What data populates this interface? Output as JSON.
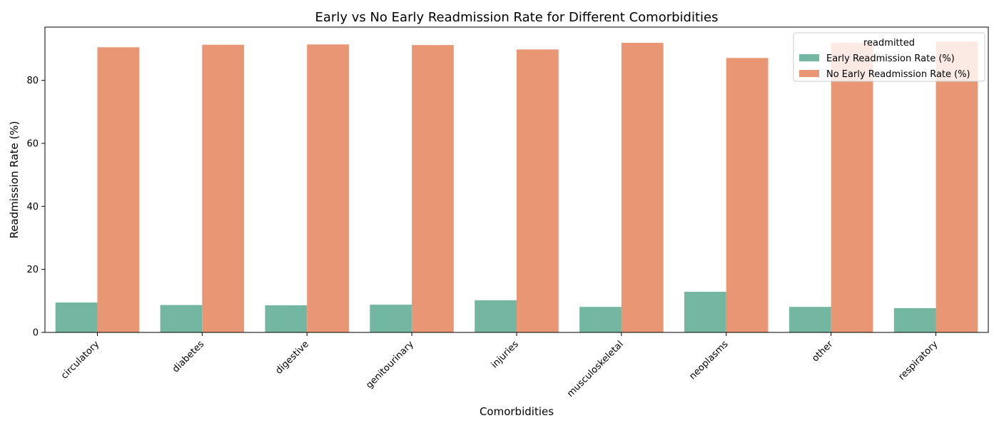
{
  "chart_data": {
    "type": "bar",
    "title": "Early vs No Early Readmission Rate for Different Comorbidities",
    "xlabel": "Comorbidities",
    "ylabel": "Readmission Rate (%)",
    "categories": [
      "circulatory",
      "diabetes",
      "digestive",
      "genitourinary",
      "injuries",
      "musculoskeletal",
      "neoplasms",
      "other",
      "respiratory"
    ],
    "series": [
      {
        "name": "Early Readmission Rate (%)",
        "color": "#73b6a1",
        "values": [
          9.5,
          8.7,
          8.6,
          8.8,
          10.2,
          8.1,
          12.9,
          8.1,
          7.7
        ]
      },
      {
        "name": "No Early Readmission Rate (%)",
        "color": "#e99675",
        "values": [
          90.5,
          91.3,
          91.4,
          91.2,
          89.8,
          91.9,
          87.1,
          91.9,
          92.3
        ]
      }
    ],
    "ylim": [
      0,
      96.9
    ],
    "yticks": [
      0,
      20,
      40,
      60,
      80
    ],
    "grid": false,
    "legend": {
      "title": "readmitted",
      "placement": "top-right"
    }
  }
}
